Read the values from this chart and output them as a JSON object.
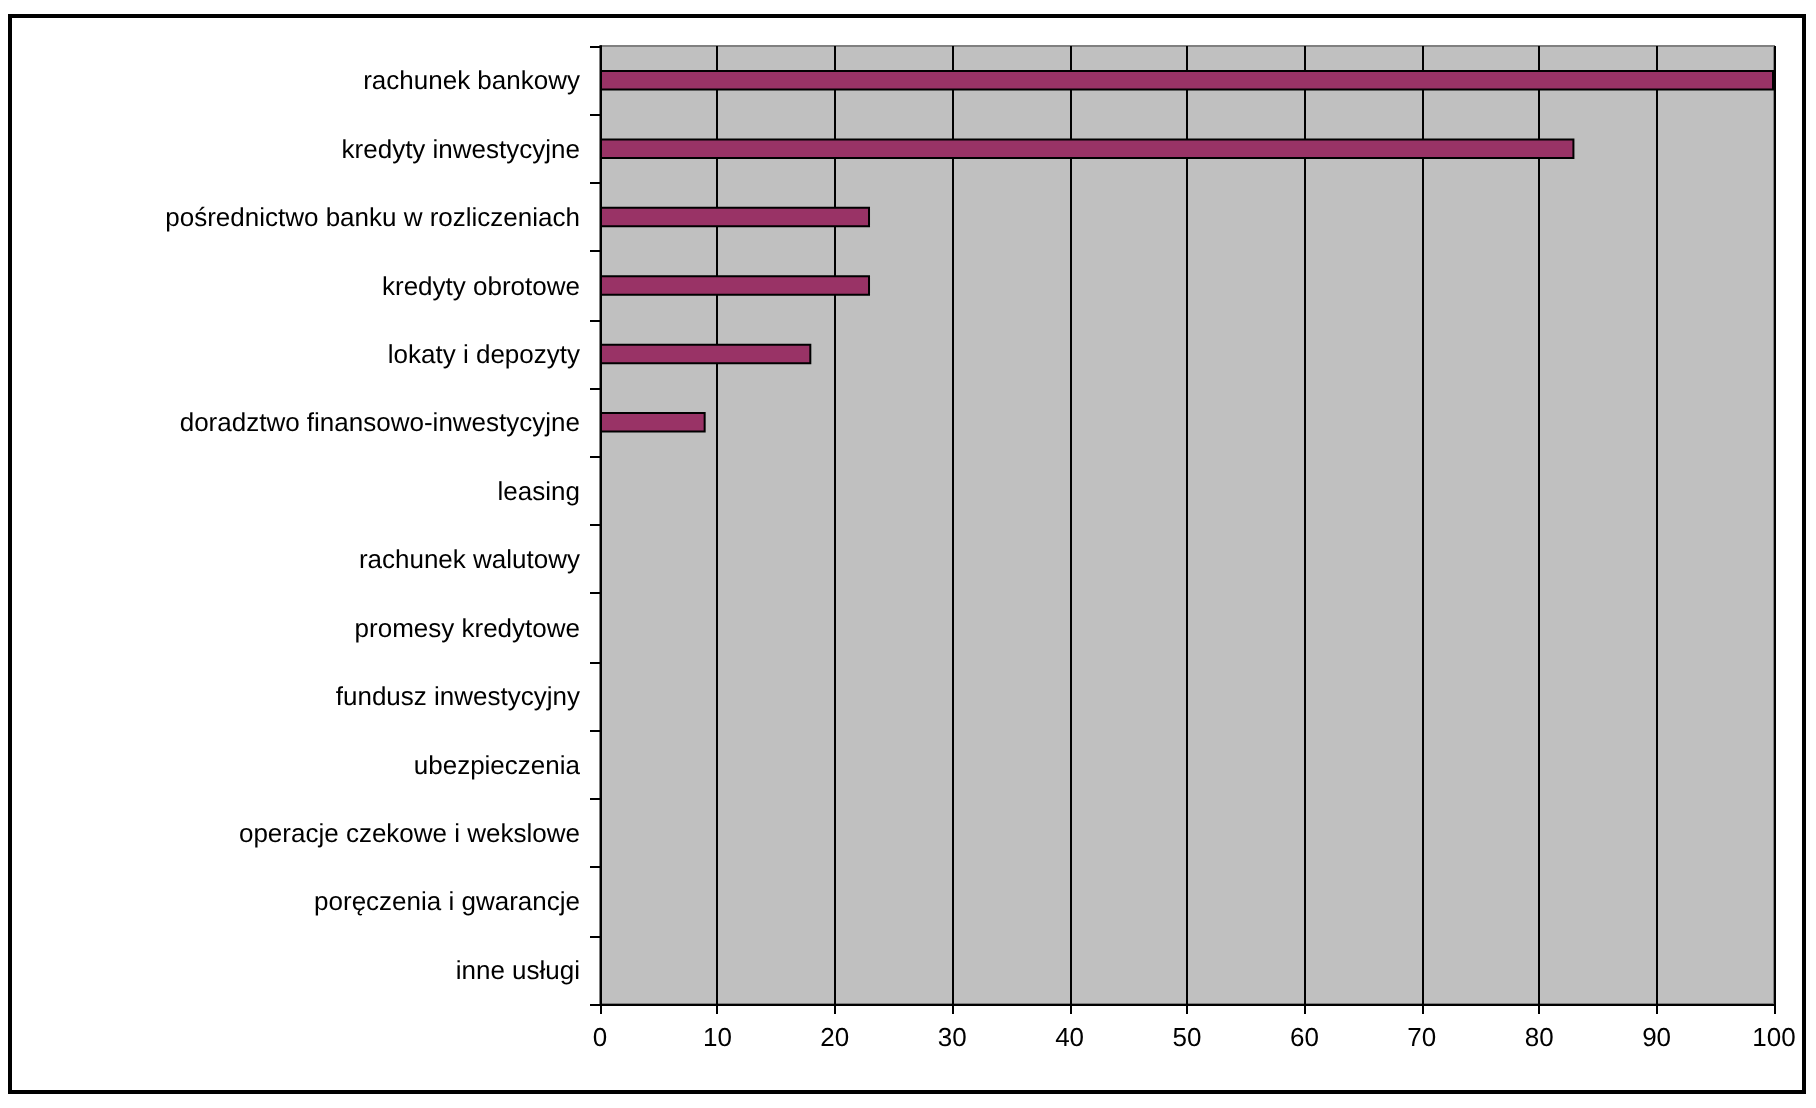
{
  "chart_data": {
    "type": "bar",
    "orientation": "horizontal",
    "categories": [
      "rachunek bankowy",
      "kredyty inwestycyjne",
      "pośrednictwo banku w rozliczeniach",
      "kredyty obrotowe",
      "lokaty i depozyty",
      "doradztwo finansowo-inwestycyjne",
      "leasing",
      "rachunek walutowy",
      "promesy kredytowe",
      "fundusz inwestycyjny",
      "ubezpieczenia",
      "operacje czekowe i wekslowe",
      "poręczenia i gwarancje",
      "inne usługi"
    ],
    "values": [
      100,
      83,
      23,
      23,
      18,
      9,
      0,
      0,
      0,
      0,
      0,
      0,
      0,
      0
    ],
    "color": "#993366",
    "xlim": [
      0,
      100
    ],
    "xticks": [
      0,
      10,
      20,
      30,
      40,
      50,
      60,
      70,
      80,
      90,
      100
    ],
    "grid": "x"
  }
}
